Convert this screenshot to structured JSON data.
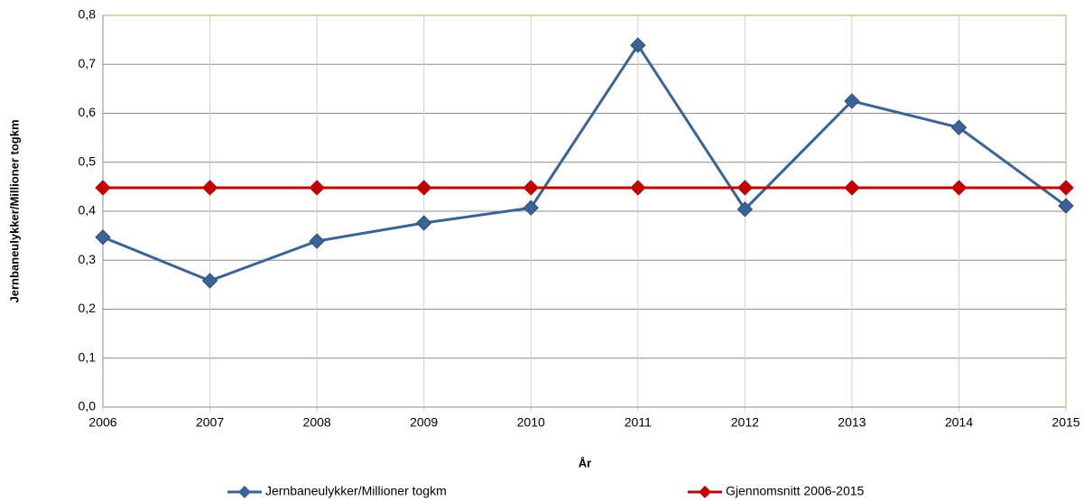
{
  "chart_data": {
    "type": "line",
    "x": [
      2006,
      2007,
      2008,
      2009,
      2010,
      2011,
      2012,
      2013,
      2014,
      2015
    ],
    "xlim": [
      2006,
      2015
    ],
    "xticks": [
      2006,
      2007,
      2008,
      2009,
      2010,
      2011,
      2012,
      2013,
      2014,
      2015
    ],
    "ylim": [
      0,
      0.8
    ],
    "yticks": [
      {
        "value": 0,
        "label": "0,0"
      },
      {
        "value": 0.1,
        "label": "0,1"
      },
      {
        "value": 0.2,
        "label": "0,2"
      },
      {
        "value": 0.3,
        "label": "0,3"
      },
      {
        "value": 0.4,
        "label": "0,4"
      },
      {
        "value": 0.5,
        "label": "0,5"
      },
      {
        "value": 0.6,
        "label": "0,6"
      },
      {
        "value": 0.7,
        "label": "0,7"
      },
      {
        "value": 0.8,
        "label": "0,8"
      }
    ],
    "x_label": "År",
    "y_label": "Jernbaneulykker/Millioner togkm",
    "grid": true,
    "legend": "bottom",
    "series": [
      {
        "name": "Jernbaneulykker/Millioner togkm",
        "color": "#3b6396",
        "values": [
          0.347,
          0.258,
          0.339,
          0.376,
          0.407,
          0.739,
          0.404,
          0.625,
          0.571,
          0.411
        ]
      },
      {
        "name": "Gjennomsnitt 2006-2015",
        "color": "#c00000",
        "values": [
          0.448,
          0.448,
          0.448,
          0.448,
          0.448,
          0.448,
          0.448,
          0.448,
          0.448,
          0.448
        ]
      }
    ]
  }
}
